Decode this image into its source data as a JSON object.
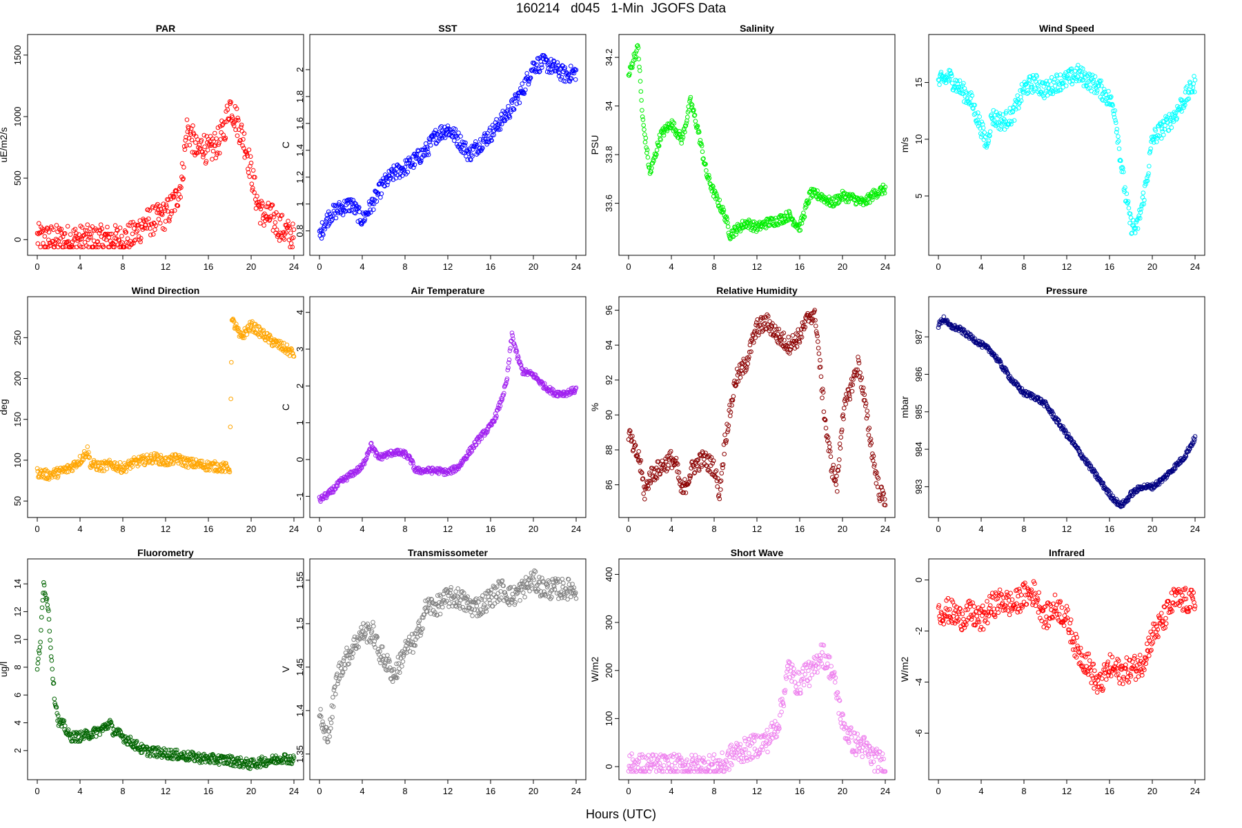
{
  "figure": {
    "title": "160214   d045   1-Min  JGOFS Data",
    "xlabel": "Hours (UTC)"
  },
  "chart_data": [
    {
      "type": "scatter",
      "title": "PAR",
      "ylabel": "uE/m2/s",
      "color": "#ff0000",
      "xlim": [
        0,
        24
      ],
      "xticks": [
        0,
        4,
        8,
        12,
        16,
        20,
        24
      ],
      "ylim": [
        -60,
        1600
      ],
      "yticks": [
        0,
        500,
        1000,
        1500
      ],
      "x": [
        0,
        1,
        2,
        3,
        4,
        5,
        6,
        7,
        8,
        9,
        9.5,
        10,
        11,
        12,
        12.5,
        13,
        13.5,
        14,
        14.5,
        15,
        15.5,
        16,
        16.5,
        17,
        17.5,
        18,
        18.5,
        19,
        19.5,
        20,
        20.5,
        21,
        22,
        23,
        24
      ],
      "y": [
        15,
        5,
        3,
        2,
        2,
        2,
        2,
        2,
        3,
        30,
        80,
        130,
        160,
        200,
        260,
        330,
        480,
        900,
        820,
        700,
        780,
        700,
        760,
        800,
        900,
        1100,
        1000,
        880,
        760,
        550,
        330,
        210,
        170,
        80,
        10
      ],
      "noise": 120
    },
    {
      "type": "scatter",
      "title": "SST",
      "ylabel": "C",
      "color": "#0000ff",
      "xlim": [
        0,
        24
      ],
      "xticks": [
        0,
        4,
        8,
        12,
        16,
        20,
        24
      ],
      "ylim": [
        0.68,
        2.2
      ],
      "yticks": [
        0.8,
        1.0,
        1.2,
        1.4,
        1.6,
        1.8,
        2.0
      ],
      "x": [
        0,
        0.5,
        1,
        2,
        3,
        4,
        5,
        6,
        7,
        8,
        9,
        10,
        11,
        12,
        13,
        14,
        15,
        16,
        17,
        18,
        19,
        20,
        21,
        22,
        23,
        24
      ],
      "y": [
        0.76,
        0.86,
        0.92,
        0.97,
        1.0,
        0.88,
        1.01,
        1.15,
        1.23,
        1.27,
        1.33,
        1.4,
        1.52,
        1.56,
        1.48,
        1.37,
        1.45,
        1.52,
        1.62,
        1.72,
        1.85,
        2.03,
        2.05,
        2.01,
        1.96,
        1.98
      ],
      "noise": 0.06
    },
    {
      "type": "scatter",
      "title": "Salinity",
      "ylabel": "PSU",
      "color": "#00ee00",
      "xlim": [
        0,
        24
      ],
      "xticks": [
        0,
        4,
        8,
        12,
        16,
        20,
        24
      ],
      "ylim": [
        33.42,
        34.26
      ],
      "yticks": [
        33.6,
        33.8,
        34.0,
        34.2
      ],
      "x": [
        0,
        0.5,
        0.9,
        1.3,
        2,
        2.5,
        3,
        4,
        5,
        5.8,
        6.5,
        7.3,
        8,
        9,
        9.5,
        10,
        11,
        12,
        13,
        14,
        15,
        16,
        17,
        18,
        19,
        20,
        21,
        22,
        23,
        24
      ],
      "y": [
        34.12,
        34.2,
        34.24,
        33.95,
        33.72,
        33.8,
        33.88,
        33.93,
        33.86,
        34.02,
        33.9,
        33.72,
        33.64,
        33.55,
        33.47,
        33.49,
        33.52,
        33.5,
        33.52,
        33.53,
        33.55,
        33.5,
        33.64,
        33.63,
        33.6,
        33.63,
        33.62,
        33.6,
        33.64,
        33.66
      ],
      "noise": 0.02
    },
    {
      "type": "scatter",
      "title": "Wind Speed",
      "ylabel": "m/s",
      "color": "#00ffff",
      "xlim": [
        0,
        24
      ],
      "xticks": [
        0,
        4,
        8,
        12,
        16,
        20,
        24
      ],
      "ylim": [
        0.5,
        18.5
      ],
      "yticks": [
        5,
        10,
        15
      ],
      "x": [
        0,
        1,
        2,
        3,
        4,
        4.5,
        5,
        6,
        7,
        8,
        9,
        10,
        11,
        12,
        13,
        14,
        15,
        16,
        16.5,
        17,
        17.5,
        18,
        18.5,
        19,
        19.5,
        20,
        21,
        22,
        23,
        24
      ],
      "y": [
        15,
        15.5,
        14.5,
        13.5,
        11,
        9.5,
        12,
        11.5,
        12.2,
        14.5,
        15,
        14.3,
        15,
        15.2,
        15.8,
        15.2,
        14.6,
        13.5,
        12.5,
        8.5,
        5,
        2.5,
        2,
        4,
        6.5,
        10,
        11,
        12,
        13.5,
        15
      ],
      "noise": 0.8
    },
    {
      "type": "scatter",
      "title": "Wind Direction",
      "ylabel": "deg",
      "color": "#ffa500",
      "xlim": [
        0,
        24
      ],
      "xticks": [
        0,
        4,
        8,
        12,
        16,
        20,
        24
      ],
      "ylim": [
        40,
        290
      ],
      "yticks": [
        50,
        100,
        150,
        200,
        250
      ],
      "x": [
        0,
        1,
        2,
        3,
        4,
        4.7,
        5,
        6,
        7,
        8,
        9,
        10,
        11,
        12,
        13,
        14,
        15,
        16,
        17,
        18,
        18.2,
        18.5,
        19,
        20,
        21,
        22,
        23,
        24
      ],
      "y": [
        85,
        82,
        85,
        90,
        100,
        112,
        95,
        92,
        95,
        90,
        97,
        100,
        103,
        98,
        102,
        97,
        95,
        93,
        92,
        90,
        270,
        265,
        250,
        265,
        255,
        245,
        238,
        230
      ],
      "noise": 6
    },
    {
      "type": "scatter",
      "title": "Air Temperature",
      "ylabel": "C",
      "color": "#a020f0",
      "xlim": [
        0,
        24
      ],
      "xticks": [
        0,
        4,
        8,
        12,
        16,
        20,
        24
      ],
      "ylim": [
        -1.35,
        4.2
      ],
      "yticks": [
        -1,
        0,
        1,
        2,
        3,
        4
      ],
      "x": [
        0,
        1,
        2,
        3,
        4,
        4.8,
        5.5,
        6,
        7,
        8,
        8.5,
        9,
        10,
        11,
        12,
        13,
        14,
        15,
        16,
        16.5,
        17,
        17.5,
        18,
        18.5,
        19,
        20,
        21,
        22,
        23,
        24
      ],
      "y": [
        -1.1,
        -0.9,
        -0.6,
        -0.4,
        -0.2,
        0.4,
        0.05,
        0.1,
        0.2,
        0.15,
        0,
        -0.3,
        -0.3,
        -0.3,
        -0.35,
        -0.2,
        0.2,
        0.6,
        0.9,
        1.2,
        1.6,
        2.1,
        3.4,
        2.8,
        2.4,
        2.3,
        2,
        1.8,
        1.8,
        1.9
      ],
      "noise": 0.08
    },
    {
      "type": "scatter",
      "title": "Relative Humidity",
      "ylabel": "%",
      "color": "#8b0000",
      "xlim": [
        0,
        24
      ],
      "xticks": [
        0,
        4,
        8,
        12,
        16,
        20,
        24
      ],
      "ylim": [
        84.6,
        96.3
      ],
      "yticks": [
        86,
        88,
        90,
        92,
        94,
        96
      ],
      "x": [
        0,
        0.5,
        1,
        1.5,
        2,
        3,
        4,
        4.5,
        5,
        6,
        7,
        8,
        8.5,
        9,
        10,
        11,
        12,
        13,
        14,
        15,
        16,
        17,
        17.5,
        18,
        18.5,
        19,
        19.5,
        20,
        21,
        21.5,
        22,
        23,
        23.5,
        24
      ],
      "y": [
        89,
        88,
        87.5,
        85.5,
        86.5,
        87,
        87.5,
        87,
        85.5,
        87,
        87.5,
        87,
        85.5,
        88.5,
        92,
        93,
        95,
        95.3,
        94.5,
        94,
        94.5,
        95.8,
        95.5,
        92,
        89,
        87,
        86,
        90,
        92,
        93,
        91,
        87,
        85.5,
        85.2
      ],
      "noise": 0.5
    },
    {
      "type": "scatter",
      "title": "Pressure",
      "ylabel": "mbar",
      "color": "#000080",
      "xlim": [
        0,
        24
      ],
      "xticks": [
        0,
        4,
        8,
        12,
        16,
        20,
        24
      ],
      "ylim": [
        982.4,
        987.85
      ],
      "yticks": [
        983,
        984,
        985,
        986,
        987
      ],
      "x": [
        0,
        0.5,
        1,
        2,
        3,
        4,
        5,
        6,
        7,
        8,
        9,
        10,
        11,
        12,
        13,
        14,
        15,
        16,
        17,
        17.5,
        18,
        19,
        20,
        21,
        22,
        23,
        24
      ],
      "y": [
        987.3,
        987.5,
        987.3,
        987.2,
        987,
        986.8,
        986.6,
        986.2,
        985.8,
        985.5,
        985.4,
        985.2,
        984.8,
        984.4,
        984,
        983.6,
        983.2,
        982.8,
        982.5,
        982.6,
        982.8,
        983,
        983,
        983.2,
        983.5,
        983.8,
        984.3
      ],
      "noise": 0.07
    },
    {
      "type": "scatter",
      "title": "Fluorometry",
      "ylabel": "ug/l",
      "color": "#006400",
      "xlim": [
        0,
        24
      ],
      "xticks": [
        0,
        4,
        8,
        12,
        16,
        20,
        24
      ],
      "ylim": [
        0.5,
        15.2
      ],
      "yticks": [
        2,
        4,
        6,
        8,
        10,
        12,
        14
      ],
      "x": [
        0,
        0.3,
        0.6,
        1,
        1.3,
        1.6,
        2,
        2.5,
        3,
        4,
        5,
        6,
        6.8,
        7,
        8,
        9,
        10,
        12,
        14,
        16,
        18,
        20,
        21,
        22,
        23,
        24
      ],
      "y": [
        7.8,
        10,
        14,
        12.5,
        9,
        6,
        4,
        3.8,
        3,
        3,
        3.2,
        3.5,
        4,
        3.5,
        3,
        2.5,
        2,
        1.8,
        1.6,
        1.4,
        1.3,
        1,
        1.2,
        1.3,
        1.5,
        1.3
      ],
      "noise": 0.35
    },
    {
      "type": "scatter",
      "title": "Transmissometer",
      "ylabel": "V",
      "color": "#808080",
      "xlim": [
        0,
        24
      ],
      "xticks": [
        0,
        4,
        8,
        12,
        16,
        20,
        24
      ],
      "ylim": [
        1.33,
        1.565
      ],
      "yticks": [
        1.35,
        1.4,
        1.45,
        1.5,
        1.55
      ],
      "x": [
        0,
        0.5,
        1,
        1.5,
        2,
        3,
        4,
        5,
        5.5,
        6,
        6.5,
        7,
        8,
        9,
        9.5,
        10,
        11,
        12,
        13,
        14,
        15,
        16,
        17,
        18,
        19,
        20,
        21,
        22,
        23,
        24
      ],
      "y": [
        1.4,
        1.37,
        1.38,
        1.43,
        1.45,
        1.47,
        1.49,
        1.49,
        1.47,
        1.46,
        1.45,
        1.44,
        1.47,
        1.48,
        1.5,
        1.52,
        1.52,
        1.53,
        1.53,
        1.52,
        1.52,
        1.53,
        1.54,
        1.53,
        1.54,
        1.55,
        1.54,
        1.54,
        1.54,
        1.54
      ],
      "noise": 0.012
    },
    {
      "type": "scatter",
      "title": "Short Wave",
      "ylabel": "W/m2",
      "color": "#ee82ee",
      "xlim": [
        0,
        24
      ],
      "xticks": [
        0,
        4,
        8,
        12,
        16,
        20,
        24
      ],
      "ylim": [
        -10,
        415
      ],
      "yticks": [
        0,
        100,
        200,
        300,
        400
      ],
      "x": [
        0,
        2,
        4,
        6,
        8,
        9,
        9.5,
        10,
        11,
        12,
        13,
        14,
        14.5,
        15,
        15.5,
        16,
        16.5,
        17,
        17.5,
        18,
        18.5,
        19,
        19.5,
        20,
        21,
        22,
        23,
        24
      ],
      "y": [
        3,
        2,
        1,
        1,
        1,
        5,
        20,
        30,
        35,
        45,
        55,
        90,
        150,
        210,
        180,
        170,
        200,
        190,
        210,
        240,
        220,
        200,
        150,
        90,
        50,
        40,
        15,
        3
      ],
      "noise": 25
    },
    {
      "type": "scatter",
      "title": "Infrared",
      "ylabel": "W/m2",
      "color": "#ff0000",
      "xlim": [
        0,
        24
      ],
      "xticks": [
        0,
        4,
        8,
        12,
        16,
        20,
        24
      ],
      "ylim": [
        -7.5,
        0.5
      ],
      "yticks": [
        -6,
        -4,
        -2,
        0
      ],
      "x": [
        0,
        1,
        2,
        3,
        4,
        5,
        6,
        7,
        8,
        9,
        10,
        11,
        12,
        13,
        14,
        15,
        16,
        17,
        18,
        19,
        20,
        21,
        22,
        23,
        24
      ],
      "y": [
        -1.3,
        -1.2,
        -1.5,
        -1.3,
        -1.6,
        -1,
        -0.8,
        -1,
        -0.6,
        -0.5,
        -1.5,
        -1,
        -1.5,
        -2.8,
        -3.3,
        -4.2,
        -3.4,
        -3.6,
        -3.5,
        -3.3,
        -2.2,
        -1.6,
        -0.8,
        -0.8,
        -0.9
      ],
      "noise": 0.5
    }
  ]
}
